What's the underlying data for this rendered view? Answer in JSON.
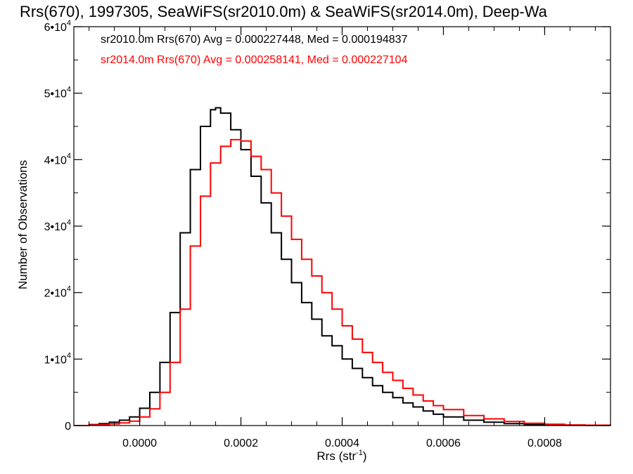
{
  "chart_data": {
    "type": "line",
    "title": "Rrs(670), 1997305, SeaWiFS(sr2010.0m) & SeaWiFS(sr2014.0m), Deep-Wa",
    "xlabel": "Rrs (str",
    "xlabel_sup": "-1",
    "xlabel_close": ")",
    "ylabel": "Number of Observations",
    "xlim": [
      -0.00013,
      0.00093
    ],
    "ylim": [
      0,
      60000
    ],
    "x_ticks": [
      {
        "value": 0.0,
        "label": "0.0000"
      },
      {
        "value": 0.0002,
        "label": "0.0002"
      },
      {
        "value": 0.0004,
        "label": "0.0004"
      },
      {
        "value": 0.0006,
        "label": "0.0006"
      },
      {
        "value": 0.0008,
        "label": "0.0008"
      }
    ],
    "y_ticks": [
      {
        "value": 0,
        "base": "0",
        "exp": ""
      },
      {
        "value": 10000,
        "base": "1•10",
        "exp": "4"
      },
      {
        "value": 20000,
        "base": "2•10",
        "exp": "4"
      },
      {
        "value": 30000,
        "base": "3•10",
        "exp": "4"
      },
      {
        "value": 40000,
        "base": "4•10",
        "exp": "4"
      },
      {
        "value": 50000,
        "base": "5•10",
        "exp": "4"
      },
      {
        "value": 60000,
        "base": "6•10",
        "exp": "4"
      }
    ],
    "grid": false,
    "legend_position": "top-left",
    "series": [
      {
        "name": "sr2010.0m Rrs(670) Avg = 0.000227448, Med = 0.000194837",
        "color": "#000000",
        "style": "step",
        "x": [
          -0.00013,
          -0.0001,
          -8e-05,
          -6e-05,
          -4e-05,
          -2e-05,
          0.0,
          2e-05,
          4e-05,
          6e-05,
          8e-05,
          0.0001,
          0.00012,
          0.00014,
          0.00015,
          0.00016,
          0.00018,
          0.0002,
          0.00022,
          0.00024,
          0.00026,
          0.00028,
          0.0003,
          0.00032,
          0.00034,
          0.00036,
          0.00038,
          0.0004,
          0.00042,
          0.00044,
          0.00046,
          0.00048,
          0.0005,
          0.00052,
          0.00054,
          0.00056,
          0.00058,
          0.0006,
          0.00064,
          0.00068,
          0.00072,
          0.00076,
          0.0008,
          0.00084,
          0.00088,
          0.00093
        ],
        "y": [
          0,
          150,
          300,
          500,
          800,
          1300,
          2600,
          5000,
          9500,
          17000,
          29000,
          38500,
          45000,
          47500,
          47800,
          47000,
          44500,
          41500,
          37500,
          33500,
          29000,
          25000,
          21500,
          18500,
          16000,
          13500,
          12000,
          10000,
          8600,
          7200,
          6000,
          5000,
          4200,
          3400,
          2800,
          2200,
          1700,
          1300,
          800,
          500,
          300,
          150,
          80,
          40,
          20,
          0
        ]
      },
      {
        "name": "sr2014.0m Rrs(670) Avg = 0.000258141, Med = 0.000227104",
        "color": "#ff0000",
        "style": "step",
        "x": [
          -0.00013,
          -0.0001,
          -8e-05,
          -6e-05,
          -4e-05,
          -2e-05,
          0.0,
          2e-05,
          4e-05,
          6e-05,
          8e-05,
          0.0001,
          0.00012,
          0.00014,
          0.00016,
          0.00018,
          0.0002,
          0.00022,
          0.00024,
          0.00026,
          0.00028,
          0.0003,
          0.00032,
          0.00034,
          0.00036,
          0.00038,
          0.0004,
          0.00042,
          0.00044,
          0.00046,
          0.00048,
          0.0005,
          0.00052,
          0.00054,
          0.00056,
          0.00058,
          0.0006,
          0.00064,
          0.00068,
          0.00072,
          0.00076,
          0.0008,
          0.00084,
          0.00088,
          0.00093
        ],
        "y": [
          0,
          80,
          150,
          250,
          400,
          650,
          1300,
          2500,
          5000,
          9500,
          17500,
          27000,
          34500,
          39500,
          42000,
          43000,
          42800,
          40500,
          38500,
          35000,
          31500,
          28000,
          25000,
          22500,
          20000,
          17500,
          15000,
          13000,
          11000,
          9500,
          8000,
          6800,
          5600,
          4600,
          3700,
          3000,
          2400,
          1500,
          1000,
          600,
          350,
          200,
          100,
          50,
          0
        ]
      }
    ]
  }
}
